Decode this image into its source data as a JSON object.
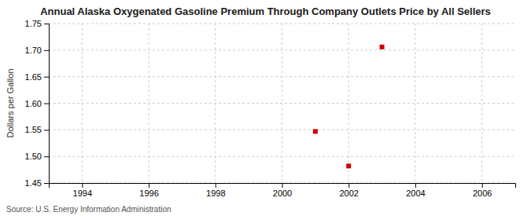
{
  "chart_data": {
    "type": "scatter",
    "title": "Annual Alaska Oxygenated Gasoline Premium Through Company Outlets Price by All Sellers",
    "ylabel": "Dollars per Gallon",
    "annotation": "Source: U.S. Energy Information Administration",
    "x": [
      2001,
      2002,
      2003
    ],
    "values": [
      1.547,
      1.482,
      1.706
    ],
    "color": "#cc0000",
    "marker": "square",
    "xlim": [
      1993,
      2007
    ],
    "ylim": [
      1.45,
      1.75
    ],
    "xticks": [
      1994,
      1996,
      1998,
      2000,
      2002,
      2004,
      2006
    ],
    "yticks": [
      1.45,
      {
        "value": 1.5,
        "label": "1.50"
      },
      1.55,
      {
        "value": 1.6,
        "label": "1.60"
      },
      1.65,
      {
        "value": 1.7,
        "label": "1.70"
      },
      1.75
    ],
    "grid": true
  }
}
